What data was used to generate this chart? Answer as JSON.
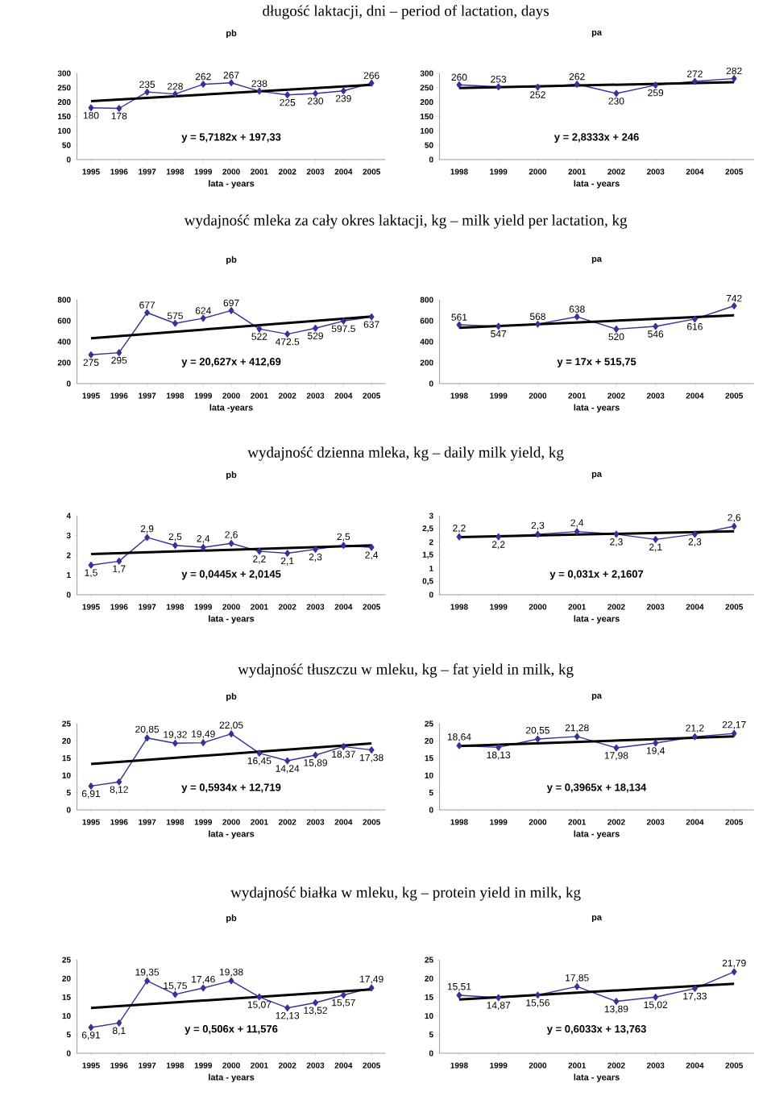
{
  "chart_data": [
    {
      "type": "line",
      "subtitle": "długość laktacji, dni – period of lactation, days",
      "title": "pb",
      "xlabel": "lata - years",
      "x": [
        1995,
        1996,
        1997,
        1998,
        1999,
        2000,
        2001,
        2002,
        2003,
        2004,
        2005
      ],
      "xlim": [
        1994.5,
        2005.5
      ],
      "xticks": [
        1995,
        1996,
        1997,
        1998,
        1999,
        2000,
        2001,
        2002,
        2003,
        2004,
        2005
      ],
      "ylim": [
        0,
        300
      ],
      "yticks": [
        0,
        50,
        100,
        150,
        200,
        250,
        300
      ],
      "marker": "diamond",
      "annotations": [
        "y = 5,7182x + 197,33"
      ],
      "series": [
        {
          "color": "#333399",
          "values": [
            180,
            178,
            235,
            228,
            262,
            267,
            238,
            225,
            230,
            239,
            266
          ],
          "value_labels": [
            "180",
            "178",
            "235",
            "228",
            "262",
            "267",
            "238",
            "225",
            "230",
            "239",
            "266"
          ]
        },
        {
          "type": "line",
          "color": "#000000",
          "marker": "none",
          "x": [
            1995,
            2005
          ],
          "values": [
            203,
            260
          ]
        }
      ]
    },
    {
      "type": "line",
      "title": "pa",
      "xlabel": "lata - years",
      "x": [
        1998,
        1999,
        2000,
        2001,
        2002,
        2003,
        2004,
        2005
      ],
      "xlim": [
        1997.5,
        2005.5
      ],
      "xticks": [
        1998,
        1999,
        2000,
        2001,
        2002,
        2003,
        2004,
        2005
      ],
      "ylim": [
        0,
        300
      ],
      "yticks": [
        0,
        50,
        100,
        150,
        200,
        250,
        300
      ],
      "marker": "diamond",
      "annotations": [
        "y = 2,8333x + 246"
      ],
      "series": [
        {
          "color": "#333399",
          "values": [
            260,
            253,
            252,
            262,
            230,
            259,
            272,
            282
          ],
          "value_labels": [
            "260",
            "253",
            "252",
            "262",
            "230",
            "259",
            "272",
            "282"
          ]
        },
        {
          "type": "line",
          "color": "#000000",
          "marker": "none",
          "x": [
            1998,
            2005
          ],
          "values": [
            249,
            269
          ]
        }
      ]
    },
    {
      "type": "line",
      "subtitle": "wydajność mleka za cały okres laktacji, kg – milk yield per lactation, kg",
      "title": "pb",
      "xlabel": "lata -years",
      "x": [
        1995,
        1996,
        1997,
        1998,
        1999,
        2000,
        2001,
        2002,
        2003,
        2004,
        2005
      ],
      "xlim": [
        1994.5,
        2005.5
      ],
      "xticks": [
        1995,
        1996,
        1997,
        1998,
        1999,
        2000,
        2001,
        2002,
        2003,
        2004,
        2005
      ],
      "ylim": [
        0,
        800
      ],
      "yticks": [
        0,
        200,
        400,
        600,
        800
      ],
      "marker": "diamond",
      "annotations": [
        "y = 20,627x + 412,69"
      ],
      "series": [
        {
          "color": "#333399",
          "values": [
            275,
            295,
            677,
            575,
            624,
            697,
            522,
            472.5,
            529,
            597.5,
            637
          ],
          "value_labels": [
            "275",
            "295",
            "677",
            "575",
            "624",
            "697",
            "522",
            "472.5",
            "529",
            "597.5",
            "637"
          ]
        },
        {
          "type": "line",
          "color": "#000000",
          "marker": "none",
          "x": [
            1995,
            2005
          ],
          "values": [
            433,
            640
          ]
        }
      ]
    },
    {
      "type": "line",
      "title": "pa",
      "xlabel": "lata - years",
      "x": [
        1998,
        1999,
        2000,
        2001,
        2002,
        2003,
        2004,
        2005
      ],
      "xlim": [
        1997.5,
        2005.5
      ],
      "xticks": [
        1998,
        1999,
        2000,
        2001,
        2002,
        2003,
        2004,
        2005
      ],
      "ylim": [
        0,
        800
      ],
      "yticks": [
        0,
        200,
        400,
        600,
        800
      ],
      "marker": "diamond",
      "annotations": [
        "y = 17x + 515,75"
      ],
      "series": [
        {
          "color": "#333399",
          "values": [
            561,
            547,
            568,
            638,
            520,
            546,
            616,
            742
          ],
          "value_labels": [
            "561",
            "547",
            "568",
            "638",
            "520",
            "546",
            "616",
            "742"
          ]
        },
        {
          "type": "line",
          "color": "#000000",
          "marker": "none",
          "x": [
            1998,
            2005
          ],
          "values": [
            533,
            652
          ]
        }
      ]
    },
    {
      "type": "line",
      "subtitle": "wydajność dzienna mleka, kg – daily milk yield, kg",
      "title": "pb",
      "xlabel": "lata - years",
      "x": [
        1995,
        1996,
        1997,
        1998,
        1999,
        2000,
        2001,
        2002,
        2003,
        2004,
        2005
      ],
      "xlim": [
        1994.5,
        2005.5
      ],
      "xticks": [
        1995,
        1996,
        1997,
        1998,
        1999,
        2000,
        2001,
        2002,
        2003,
        2004,
        2005
      ],
      "ylim": [
        0,
        4
      ],
      "yticks": [
        0,
        1,
        2,
        3,
        4
      ],
      "marker": "diamond",
      "annotations": [
        "y = 0,0445x + 2,0145"
      ],
      "series": [
        {
          "color": "#333399",
          "values": [
            1.5,
            1.7,
            2.9,
            2.5,
            2.4,
            2.6,
            2.2,
            2.1,
            2.3,
            2.5,
            2.4
          ],
          "value_labels": [
            "1,5",
            "1,7",
            "2,9",
            "2,5",
            "2,4",
            "2,6",
            "2,2",
            "2,1",
            "2,3",
            "2,5",
            "2,4"
          ]
        },
        {
          "type": "line",
          "color": "#000000",
          "marker": "none",
          "x": [
            1995,
            2005
          ],
          "values": [
            2.06,
            2.5
          ]
        }
      ]
    },
    {
      "type": "line",
      "title": "pa",
      "xlabel": "lata - years",
      "x": [
        1998,
        1999,
        2000,
        2001,
        2002,
        2003,
        2004,
        2005
      ],
      "xlim": [
        1997.5,
        2005.5
      ],
      "xticks": [
        1998,
        1999,
        2000,
        2001,
        2002,
        2003,
        2004,
        2005
      ],
      "ylim": [
        0,
        3
      ],
      "yticks": [
        0,
        {
          "value": 0.5,
          "label": "0,5"
        },
        1,
        {
          "value": 1.5,
          "label": "1,5"
        },
        2,
        {
          "value": 2.5,
          "label": "2,5"
        },
        3
      ],
      "marker": "diamond",
      "annotations": [
        "y = 0,031x + 2,1607"
      ],
      "series": [
        {
          "color": "#333399",
          "values": [
            2.2,
            2.2,
            2.3,
            2.4,
            2.3,
            2.1,
            2.3,
            2.6
          ],
          "value_labels": [
            "2,2",
            "2,2",
            "2,3",
            "2,4",
            "2,3",
            "2,1",
            "2,3",
            "2,6"
          ]
        },
        {
          "type": "line",
          "color": "#000000",
          "marker": "none",
          "x": [
            1998,
            2005
          ],
          "values": [
            2.19,
            2.41
          ]
        }
      ]
    },
    {
      "type": "line",
      "subtitle": "wydajność tłuszczu w mleku, kg – fat yield in milk, kg",
      "title": "pb",
      "xlabel": "lata - years",
      "x": [
        1995,
        1996,
        1997,
        1998,
        1999,
        2000,
        2001,
        2002,
        2003,
        2004,
        2005
      ],
      "xlim": [
        1994.5,
        2005.5
      ],
      "xticks": [
        1995,
        1996,
        1997,
        1998,
        1999,
        2000,
        2001,
        2002,
        2003,
        2004,
        2005
      ],
      "ylim": [
        0,
        25
      ],
      "yticks": [
        0,
        5,
        10,
        15,
        20,
        25
      ],
      "marker": "diamond",
      "annotations": [
        "y = 0,5934x + 12,719"
      ],
      "series": [
        {
          "color": "#333399",
          "values": [
            6.91,
            8.12,
            20.85,
            19.32,
            19.49,
            22.05,
            16.45,
            14.24,
            15.89,
            18.37,
            17.38
          ],
          "value_labels": [
            "6,91",
            "8,12",
            "20,85",
            "19,32",
            "19,49",
            "22,05",
            "16,45",
            "14,24",
            "15,89",
            "18,37",
            "17,38"
          ]
        },
        {
          "type": "line",
          "color": "#000000",
          "marker": "none",
          "x": [
            1995,
            2005
          ],
          "values": [
            13.3,
            19.3
          ]
        }
      ]
    },
    {
      "type": "line",
      "title": "pa",
      "xlabel": "lata - years",
      "x": [
        1998,
        1999,
        2000,
        2001,
        2002,
        2003,
        2004,
        2005
      ],
      "xlim": [
        1997.5,
        2005.5
      ],
      "xticks": [
        1998,
        1999,
        2000,
        2001,
        2002,
        2003,
        2004,
        2005
      ],
      "ylim": [
        0,
        25
      ],
      "yticks": [
        0,
        5,
        10,
        15,
        20,
        25
      ],
      "marker": "diamond",
      "annotations": [
        "y = 0,3965x + 18,134"
      ],
      "series": [
        {
          "color": "#333399",
          "values": [
            18.64,
            18.13,
            20.55,
            21.28,
            17.98,
            19.4,
            21.2,
            22.17
          ],
          "value_labels": [
            "18,64",
            "18,13",
            "20,55",
            "21,28",
            "17,98",
            "19,4",
            "21,2",
            "22,17"
          ]
        },
        {
          "type": "line",
          "color": "#000000",
          "marker": "none",
          "x": [
            1998,
            2005
          ],
          "values": [
            18.5,
            21.3
          ]
        }
      ]
    },
    {
      "type": "line",
      "subtitle": "wydajność białka w mleku, kg – protein yield in milk, kg",
      "title": "pb",
      "xlabel": "lata - years",
      "x": [
        1995,
        1996,
        1997,
        1998,
        1999,
        2000,
        2001,
        2002,
        2003,
        2004,
        2005
      ],
      "xlim": [
        1994.5,
        2005.5
      ],
      "xticks": [
        1995,
        1996,
        1997,
        1998,
        1999,
        2000,
        2001,
        2002,
        2003,
        2004,
        2005
      ],
      "ylim": [
        0,
        25
      ],
      "yticks": [
        0,
        5,
        10,
        15,
        20,
        25
      ],
      "marker": "diamond",
      "annotations": [
        "y = 0,506x + 11,576"
      ],
      "series": [
        {
          "color": "#333399",
          "values": [
            6.91,
            8.1,
            19.35,
            15.75,
            17.46,
            19.38,
            15.07,
            12.13,
            13.52,
            15.57,
            17.49
          ],
          "value_labels": [
            "6,91",
            "8,1",
            "19,35",
            "15,75",
            "17,46",
            "19,38",
            "15,07",
            "12,13",
            "13,52",
            "15,57",
            "17,49"
          ]
        },
        {
          "type": "line",
          "color": "#000000",
          "marker": "none",
          "x": [
            1995,
            2005
          ],
          "values": [
            12.1,
            17.1
          ]
        }
      ]
    },
    {
      "type": "line",
      "title": "pa",
      "xlabel": "lata - years",
      "x": [
        1998,
        1999,
        2000,
        2001,
        2002,
        2003,
        2004,
        2005
      ],
      "xlim": [
        1997.5,
        2005.5
      ],
      "xticks": [
        1998,
        1999,
        2000,
        2001,
        2002,
        2003,
        2004,
        2005
      ],
      "ylim": [
        0,
        25
      ],
      "yticks": [
        0,
        5,
        10,
        15,
        20,
        25
      ],
      "marker": "diamond",
      "annotations": [
        "y = 0,6033x + 13,763"
      ],
      "series": [
        {
          "color": "#333399",
          "values": [
            15.51,
            14.87,
            15.56,
            17.85,
            13.89,
            15.02,
            17.33,
            21.79
          ],
          "value_labels": [
            "15,51",
            "14,87",
            "15,56",
            "17,85",
            "13,89",
            "15,02",
            "17,33",
            "21,79"
          ]
        },
        {
          "type": "line",
          "color": "#000000",
          "marker": "none",
          "x": [
            1998,
            2005
          ],
          "values": [
            14.4,
            18.6
          ]
        }
      ]
    }
  ]
}
